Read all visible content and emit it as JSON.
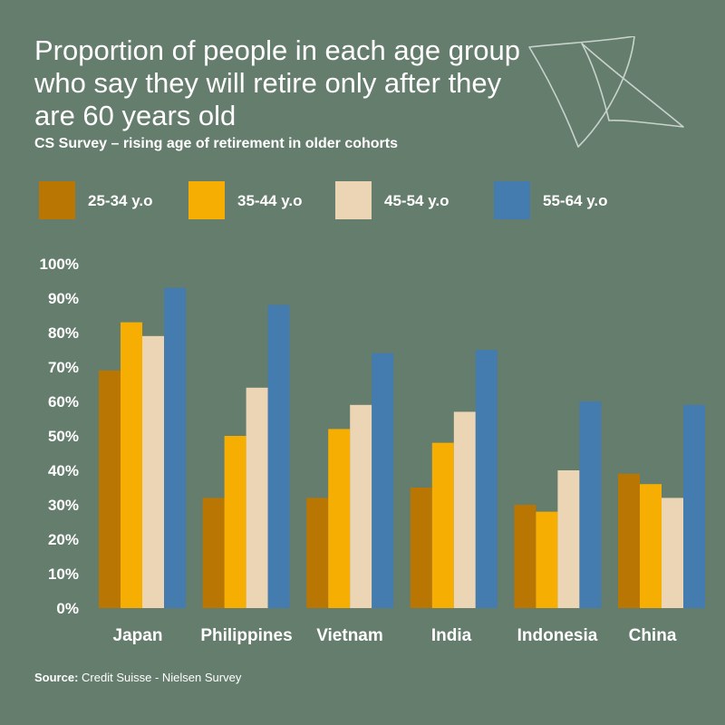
{
  "header": {
    "title": "Proportion of people in each age group who say they will retire only after they are 60 years old",
    "subtitle": "CS Survey – rising age of retirement in older cohorts"
  },
  "source": {
    "label": "Source:",
    "text": "Credit Suisse - Nielsen Survey"
  },
  "colors": {
    "background": "#647d6d",
    "series": [
      "#b97602",
      "#f7ae02",
      "#ecd5b4",
      "#457cb0"
    ]
  },
  "chart_data": {
    "type": "bar",
    "title": "Proportion of people in each age group who say they will retire only after they are 60 years old",
    "subtitle": "CS Survey – rising age of retirement in older cohorts",
    "xlabel": "",
    "ylabel": "",
    "ylim": [
      0,
      100
    ],
    "y_ticks": [
      "0%",
      "10%",
      "20%",
      "30%",
      "40%",
      "50%",
      "60%",
      "70%",
      "80%",
      "90%",
      "100%"
    ],
    "grid": false,
    "legend_position": "top",
    "categories": [
      "Japan",
      "Philippines",
      "Vietnam",
      "India",
      "Indonesia",
      "China"
    ],
    "series": [
      {
        "name": "25-34 y.o",
        "values": [
          69,
          32,
          32,
          35,
          30,
          39
        ]
      },
      {
        "name": "35-44 y.o",
        "values": [
          83,
          50,
          52,
          48,
          28,
          36
        ]
      },
      {
        "name": "45-54 y.o",
        "values": [
          79,
          64,
          59,
          57,
          40,
          32
        ]
      },
      {
        "name": "55-64 y.o",
        "values": [
          93,
          88,
          74,
          75,
          60,
          59
        ]
      }
    ]
  }
}
